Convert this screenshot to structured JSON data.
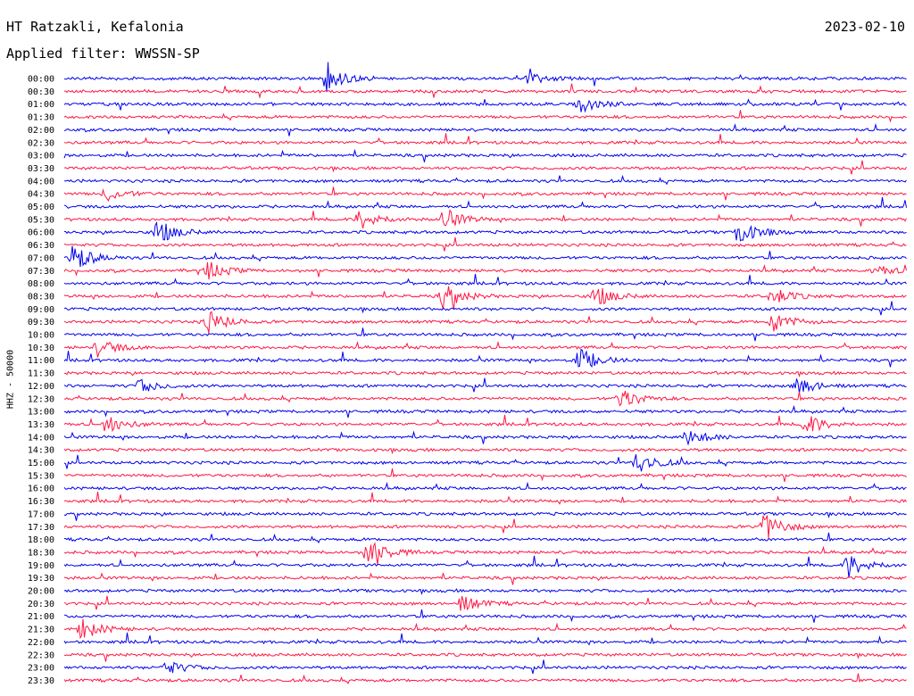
{
  "header": {
    "station": "HT Ratzakli, Kefalonia",
    "date": "2023-02-10",
    "filter": "Applied filter: WWSSN-SP"
  },
  "chart_data": {
    "type": "line",
    "title": "HT Ratzakli, Kefalonia",
    "subtitle": "Applied filter: WWSSN-SP",
    "ylabel": "HHZ - 50000",
    "xlabel": "",
    "grid": false,
    "tick_labels": [
      "00:00",
      "00:30",
      "01:00",
      "01:30",
      "02:00",
      "02:30",
      "03:00",
      "03:30",
      "04:00",
      "04:30",
      "05:00",
      "05:30",
      "06:00",
      "06:30",
      "07:00",
      "07:30",
      "08:00",
      "08:30",
      "09:00",
      "09:30",
      "10:00",
      "10:30",
      "11:00",
      "11:30",
      "12:00",
      "12:30",
      "13:00",
      "13:30",
      "14:00",
      "14:30",
      "15:00",
      "15:30",
      "16:00",
      "16:30",
      "17:00",
      "17:30",
      "18:00",
      "18:30",
      "19:00",
      "19:30",
      "20:00",
      "20:30",
      "21:00",
      "21:30",
      "22:00",
      "22:30",
      "23:00",
      "23:30"
    ],
    "colors": [
      "#0000ee",
      "#ff1744"
    ],
    "events": [
      {
        "row": 0,
        "x": 0.31,
        "amp": 16
      },
      {
        "row": 0,
        "x": 0.55,
        "amp": 6
      },
      {
        "row": 2,
        "x": 0.61,
        "amp": 10
      },
      {
        "row": 9,
        "x": 0.05,
        "amp": 8
      },
      {
        "row": 11,
        "x": 0.35,
        "amp": 12
      },
      {
        "row": 11,
        "x": 0.45,
        "amp": 12
      },
      {
        "row": 12,
        "x": 0.11,
        "amp": 14
      },
      {
        "row": 12,
        "x": 0.8,
        "amp": 14
      },
      {
        "row": 14,
        "x": 0.01,
        "amp": 16
      },
      {
        "row": 15,
        "x": 0.17,
        "amp": 10
      },
      {
        "row": 15,
        "x": 0.96,
        "amp": 8
      },
      {
        "row": 17,
        "x": 0.45,
        "amp": 14
      },
      {
        "row": 17,
        "x": 0.63,
        "amp": 12
      },
      {
        "row": 17,
        "x": 0.84,
        "amp": 10
      },
      {
        "row": 19,
        "x": 0.17,
        "amp": 14
      },
      {
        "row": 19,
        "x": 0.84,
        "amp": 12
      },
      {
        "row": 21,
        "x": 0.04,
        "amp": 10
      },
      {
        "row": 22,
        "x": 0.61,
        "amp": 14
      },
      {
        "row": 24,
        "x": 0.09,
        "amp": 8
      },
      {
        "row": 24,
        "x": 0.87,
        "amp": 10
      },
      {
        "row": 25,
        "x": 0.66,
        "amp": 12
      },
      {
        "row": 27,
        "x": 0.05,
        "amp": 10
      },
      {
        "row": 27,
        "x": 0.88,
        "amp": 12
      },
      {
        "row": 28,
        "x": 0.74,
        "amp": 10
      },
      {
        "row": 30,
        "x": 0.68,
        "amp": 14
      },
      {
        "row": 35,
        "x": 0.83,
        "amp": 16
      },
      {
        "row": 37,
        "x": 0.36,
        "amp": 18
      },
      {
        "row": 38,
        "x": 0.93,
        "amp": 14
      },
      {
        "row": 41,
        "x": 0.47,
        "amp": 10
      },
      {
        "row": 43,
        "x": 0.02,
        "amp": 12
      },
      {
        "row": 46,
        "x": 0.12,
        "amp": 8
      }
    ]
  }
}
